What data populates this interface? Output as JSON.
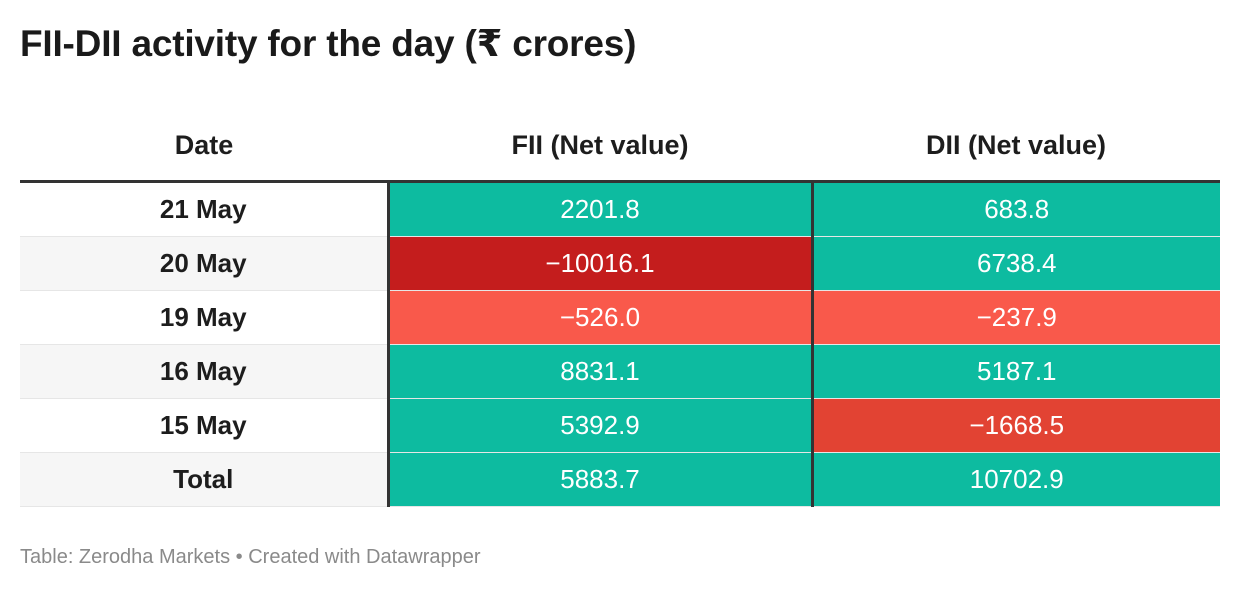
{
  "title": "FII-DII activity for the day (₹ crores)",
  "footer": "Table: Zerodha Markets • Created with Datawrapper",
  "colors": {
    "positive": "#0dbba0",
    "negative_small": "#f9594b",
    "negative_medium": "#e24333",
    "negative_large": "#c41d1d",
    "header_rule": "#333333"
  },
  "chart_data": {
    "type": "table",
    "title": "FII-DII activity for the day (₹ crores)",
    "columns": [
      "Date",
      "FII (Net value)",
      "DII (Net value)"
    ],
    "rows": [
      {
        "date": "21 May",
        "fii": "2201.8",
        "dii": "683.8",
        "fii_value": 2201.8,
        "dii_value": 683.8
      },
      {
        "date": "20 May",
        "fii": "−10016.1",
        "dii": "6738.4",
        "fii_value": -10016.1,
        "dii_value": 6738.4
      },
      {
        "date": "19 May",
        "fii": "−526.0",
        "dii": "−237.9",
        "fii_value": -526.0,
        "dii_value": -237.9
      },
      {
        "date": "16 May",
        "fii": "8831.1",
        "dii": "5187.1",
        "fii_value": 8831.1,
        "dii_value": 5187.1
      },
      {
        "date": "15 May",
        "fii": "5392.9",
        "dii": "−1668.5",
        "fii_value": 5392.9,
        "dii_value": -1668.5
      },
      {
        "date": "Total",
        "fii": "5883.7",
        "dii": "10702.9",
        "fii_value": 5883.7,
        "dii_value": 10702.9
      }
    ]
  }
}
